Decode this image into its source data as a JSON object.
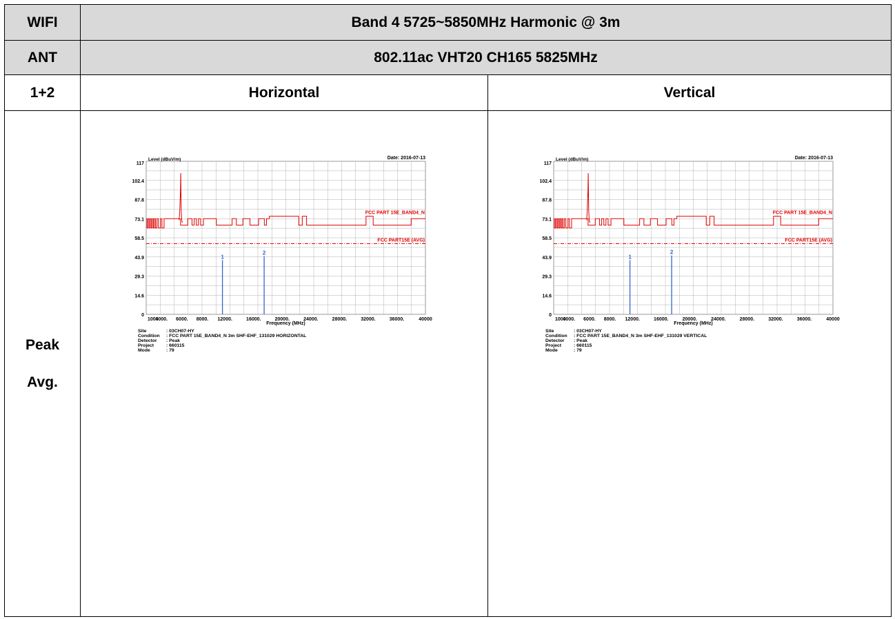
{
  "table": {
    "row1_label": "WIFI",
    "row1_title": "Band 4 5725~5850MHz Harmonic @ 3m",
    "row2_label": "ANT",
    "row2_title": "802.11ac VHT20 CH165 5825MHz",
    "row3_label": "1+2",
    "col_horizontal": "Horizontal",
    "col_vertical": "Vertical",
    "row4_label_line1": "Peak",
    "row4_label_line2": "Avg."
  },
  "colors": {
    "header_bg": "#d9d9d9",
    "limit_line": "#e00000",
    "marker": "#3366cc",
    "grid": "#b0b0b0"
  },
  "chart_data": [
    {
      "type": "line",
      "polarization": "Horizontal",
      "ylabel": "Level (dBuV/m)",
      "xlabel": "Frequency (MHz)",
      "date": "Date: 2016-07-13",
      "xlim": [
        1000,
        40000
      ],
      "ylim": [
        0,
        117
      ],
      "y_ticks": [
        "0",
        "14.6",
        "29.3",
        "43.9",
        "58.5",
        "73.1",
        "87.8",
        "102.4",
        "117"
      ],
      "x_ticks": [
        {
          "label": "1000",
          "v": 1000
        },
        {
          "label": "4000.",
          "v": 4000
        },
        {
          "label": "6000.",
          "v": 6000
        },
        {
          "label": "8000.",
          "v": 8000
        },
        {
          "label": "12000.",
          "v": 12000
        },
        {
          "label": "16000.",
          "v": 16000
        },
        {
          "label": "20000.",
          "v": 20000
        },
        {
          "label": "24000.",
          "v": 24000
        },
        {
          "label": "28000.",
          "v": 28000
        },
        {
          "label": "32000.",
          "v": 32000
        },
        {
          "label": "36000.",
          "v": 36000
        },
        {
          "label": "40000",
          "v": 40000
        }
      ],
      "series": [
        {
          "name": "FCC PART 15E_BAND4_N",
          "style": "limit-solid",
          "x": [
            1000,
            1100,
            1100,
            1250,
            1250,
            1400,
            1400,
            1550,
            1550,
            1700,
            1700,
            1850,
            1850,
            2000,
            2000,
            2150,
            2150,
            2300,
            2300,
            2500,
            2500,
            2700,
            2700,
            3000,
            3000,
            3200,
            3200,
            3500,
            3500,
            5800,
            5800,
            6800,
            6800,
            7400,
            7400,
            7700,
            7700,
            8000,
            8000,
            8300,
            8300,
            8600,
            8600,
            9000,
            9000,
            10800,
            10800,
            13000,
            13000,
            13600,
            13600,
            14500,
            14500,
            15500,
            15500,
            16700,
            16700,
            17500,
            17500,
            17800,
            17800,
            18200,
            18200,
            22300,
            22300,
            22800,
            22800,
            23400,
            23400,
            31700,
            31700,
            32700,
            32700,
            38000,
            38000,
            40000
          ],
          "y": [
            73.1,
            73.1,
            66,
            66,
            73.1,
            73.1,
            66,
            66,
            73.1,
            73.1,
            66,
            66,
            73.1,
            73.1,
            66,
            66,
            73.1,
            73.1,
            66,
            66,
            73.1,
            73.1,
            66,
            66,
            73.1,
            73.1,
            66,
            66,
            73.1,
            73.1,
            68.2,
            68.2,
            73.1,
            73.1,
            68.2,
            68.2,
            73.1,
            73.1,
            68.2,
            68.2,
            73.1,
            73.1,
            68.2,
            68.2,
            73.1,
            73.1,
            68.2,
            68.2,
            73.1,
            73.1,
            68.2,
            68.2,
            73.1,
            73.1,
            68.2,
            68.2,
            73.1,
            73.1,
            68.2,
            68.2,
            73.1,
            73.1,
            75,
            75,
            68.2,
            68.2,
            75,
            75,
            68.2,
            68.2,
            75,
            75,
            68.2,
            68.2,
            73.1,
            73.1
          ]
        },
        {
          "name": "FCC PART15E (AVG)",
          "style": "limit-dashed",
          "x": [
            1000,
            40000
          ],
          "y": [
            54,
            54
          ]
        },
        {
          "name": "Trace",
          "style": "trace",
          "x": [
            5600,
            5680,
            5730,
            5760,
            5790,
            5825,
            5860,
            5890,
            5920,
            5970,
            6050
          ],
          "y": [
            72,
            78,
            86,
            90,
            96,
            108,
            92,
            80,
            76,
            72,
            70
          ]
        }
      ],
      "markers": [
        {
          "label": "1",
          "x": 11650,
          "y": 41.5
        },
        {
          "label": "2",
          "x": 17475,
          "y": 44.5
        }
      ],
      "info": [
        {
          "key": "Site",
          "value": ": 03CH07-HY"
        },
        {
          "key": "Condition",
          "value": ": FCC PART 15E_BAND4_N 3m SHF-EHF_131029 HORIZONTAL"
        },
        {
          "key": "Detector",
          "value": ": Peak"
        },
        {
          "key": "Project",
          "value": ": 660115"
        },
        {
          "key": "Mode",
          "value": ": 79"
        }
      ]
    },
    {
      "type": "line",
      "polarization": "Vertical",
      "ylabel": "Level (dBuV/m)",
      "xlabel": "Frequency (MHz)",
      "date": "Date: 2016-07-13",
      "xlim": [
        1000,
        40000
      ],
      "ylim": [
        0,
        117
      ],
      "y_ticks": [
        "0",
        "14.6",
        "29.3",
        "43.9",
        "58.5",
        "73.1",
        "87.8",
        "102.4",
        "117"
      ],
      "x_ticks": [
        {
          "label": "1000",
          "v": 1000
        },
        {
          "label": "4000.",
          "v": 4000
        },
        {
          "label": "6000.",
          "v": 6000
        },
        {
          "label": "8000.",
          "v": 8000
        },
        {
          "label": "12000.",
          "v": 12000
        },
        {
          "label": "16000.",
          "v": 16000
        },
        {
          "label": "20000.",
          "v": 20000
        },
        {
          "label": "24000.",
          "v": 24000
        },
        {
          "label": "28000.",
          "v": 28000
        },
        {
          "label": "32000.",
          "v": 32000
        },
        {
          "label": "36000.",
          "v": 36000
        },
        {
          "label": "40000",
          "v": 40000
        }
      ],
      "series": [
        {
          "name": "FCC PART 15E_BAND4_N",
          "style": "limit-solid",
          "x": [
            1000,
            1100,
            1100,
            1250,
            1250,
            1400,
            1400,
            1550,
            1550,
            1700,
            1700,
            1850,
            1850,
            2000,
            2000,
            2150,
            2150,
            2300,
            2300,
            2500,
            2500,
            2700,
            2700,
            3000,
            3000,
            3200,
            3200,
            3500,
            3500,
            5800,
            5800,
            6800,
            6800,
            7400,
            7400,
            7700,
            7700,
            8000,
            8000,
            8300,
            8300,
            8600,
            8600,
            9000,
            9000,
            10800,
            10800,
            13000,
            13000,
            13600,
            13600,
            14500,
            14500,
            15500,
            15500,
            16700,
            16700,
            17500,
            17500,
            17800,
            17800,
            18200,
            18200,
            22300,
            22300,
            22800,
            22800,
            23400,
            23400,
            31700,
            31700,
            32700,
            32700,
            38000,
            38000,
            40000
          ],
          "y": [
            73.1,
            73.1,
            66,
            66,
            73.1,
            73.1,
            66,
            66,
            73.1,
            73.1,
            66,
            66,
            73.1,
            73.1,
            66,
            66,
            73.1,
            73.1,
            66,
            66,
            73.1,
            73.1,
            66,
            66,
            73.1,
            73.1,
            66,
            66,
            73.1,
            73.1,
            68.2,
            68.2,
            73.1,
            73.1,
            68.2,
            68.2,
            73.1,
            73.1,
            68.2,
            68.2,
            73.1,
            73.1,
            68.2,
            68.2,
            73.1,
            73.1,
            68.2,
            68.2,
            73.1,
            73.1,
            68.2,
            68.2,
            73.1,
            73.1,
            68.2,
            68.2,
            73.1,
            73.1,
            68.2,
            68.2,
            73.1,
            73.1,
            75,
            75,
            68.2,
            68.2,
            75,
            75,
            68.2,
            68.2,
            75,
            75,
            68.2,
            68.2,
            73.1,
            73.1
          ]
        },
        {
          "name": "FCC PART15E (AVG)",
          "style": "limit-dashed",
          "x": [
            1000,
            40000
          ],
          "y": [
            54,
            54
          ]
        },
        {
          "name": "Trace",
          "style": "trace",
          "x": [
            5600,
            5680,
            5730,
            5760,
            5790,
            5825,
            5860,
            5890,
            5920,
            5970,
            6050
          ],
          "y": [
            72,
            78,
            86,
            90,
            96,
            108,
            92,
            80,
            76,
            72,
            70
          ]
        }
      ],
      "markers": [
        {
          "label": "1",
          "x": 11650,
          "y": 41.5
        },
        {
          "label": "2",
          "x": 17475,
          "y": 45.0
        }
      ],
      "info": [
        {
          "key": "Site",
          "value": ": 03CH07-HY"
        },
        {
          "key": "Condition",
          "value": ": FCC PART 15E_BAND4_N 3m SHF-EHF_131029 VERTICAL"
        },
        {
          "key": "Detector",
          "value": ": Peak"
        },
        {
          "key": "Project",
          "value": ": 660115"
        },
        {
          "key": "Mode",
          "value": ": 79"
        }
      ]
    }
  ]
}
